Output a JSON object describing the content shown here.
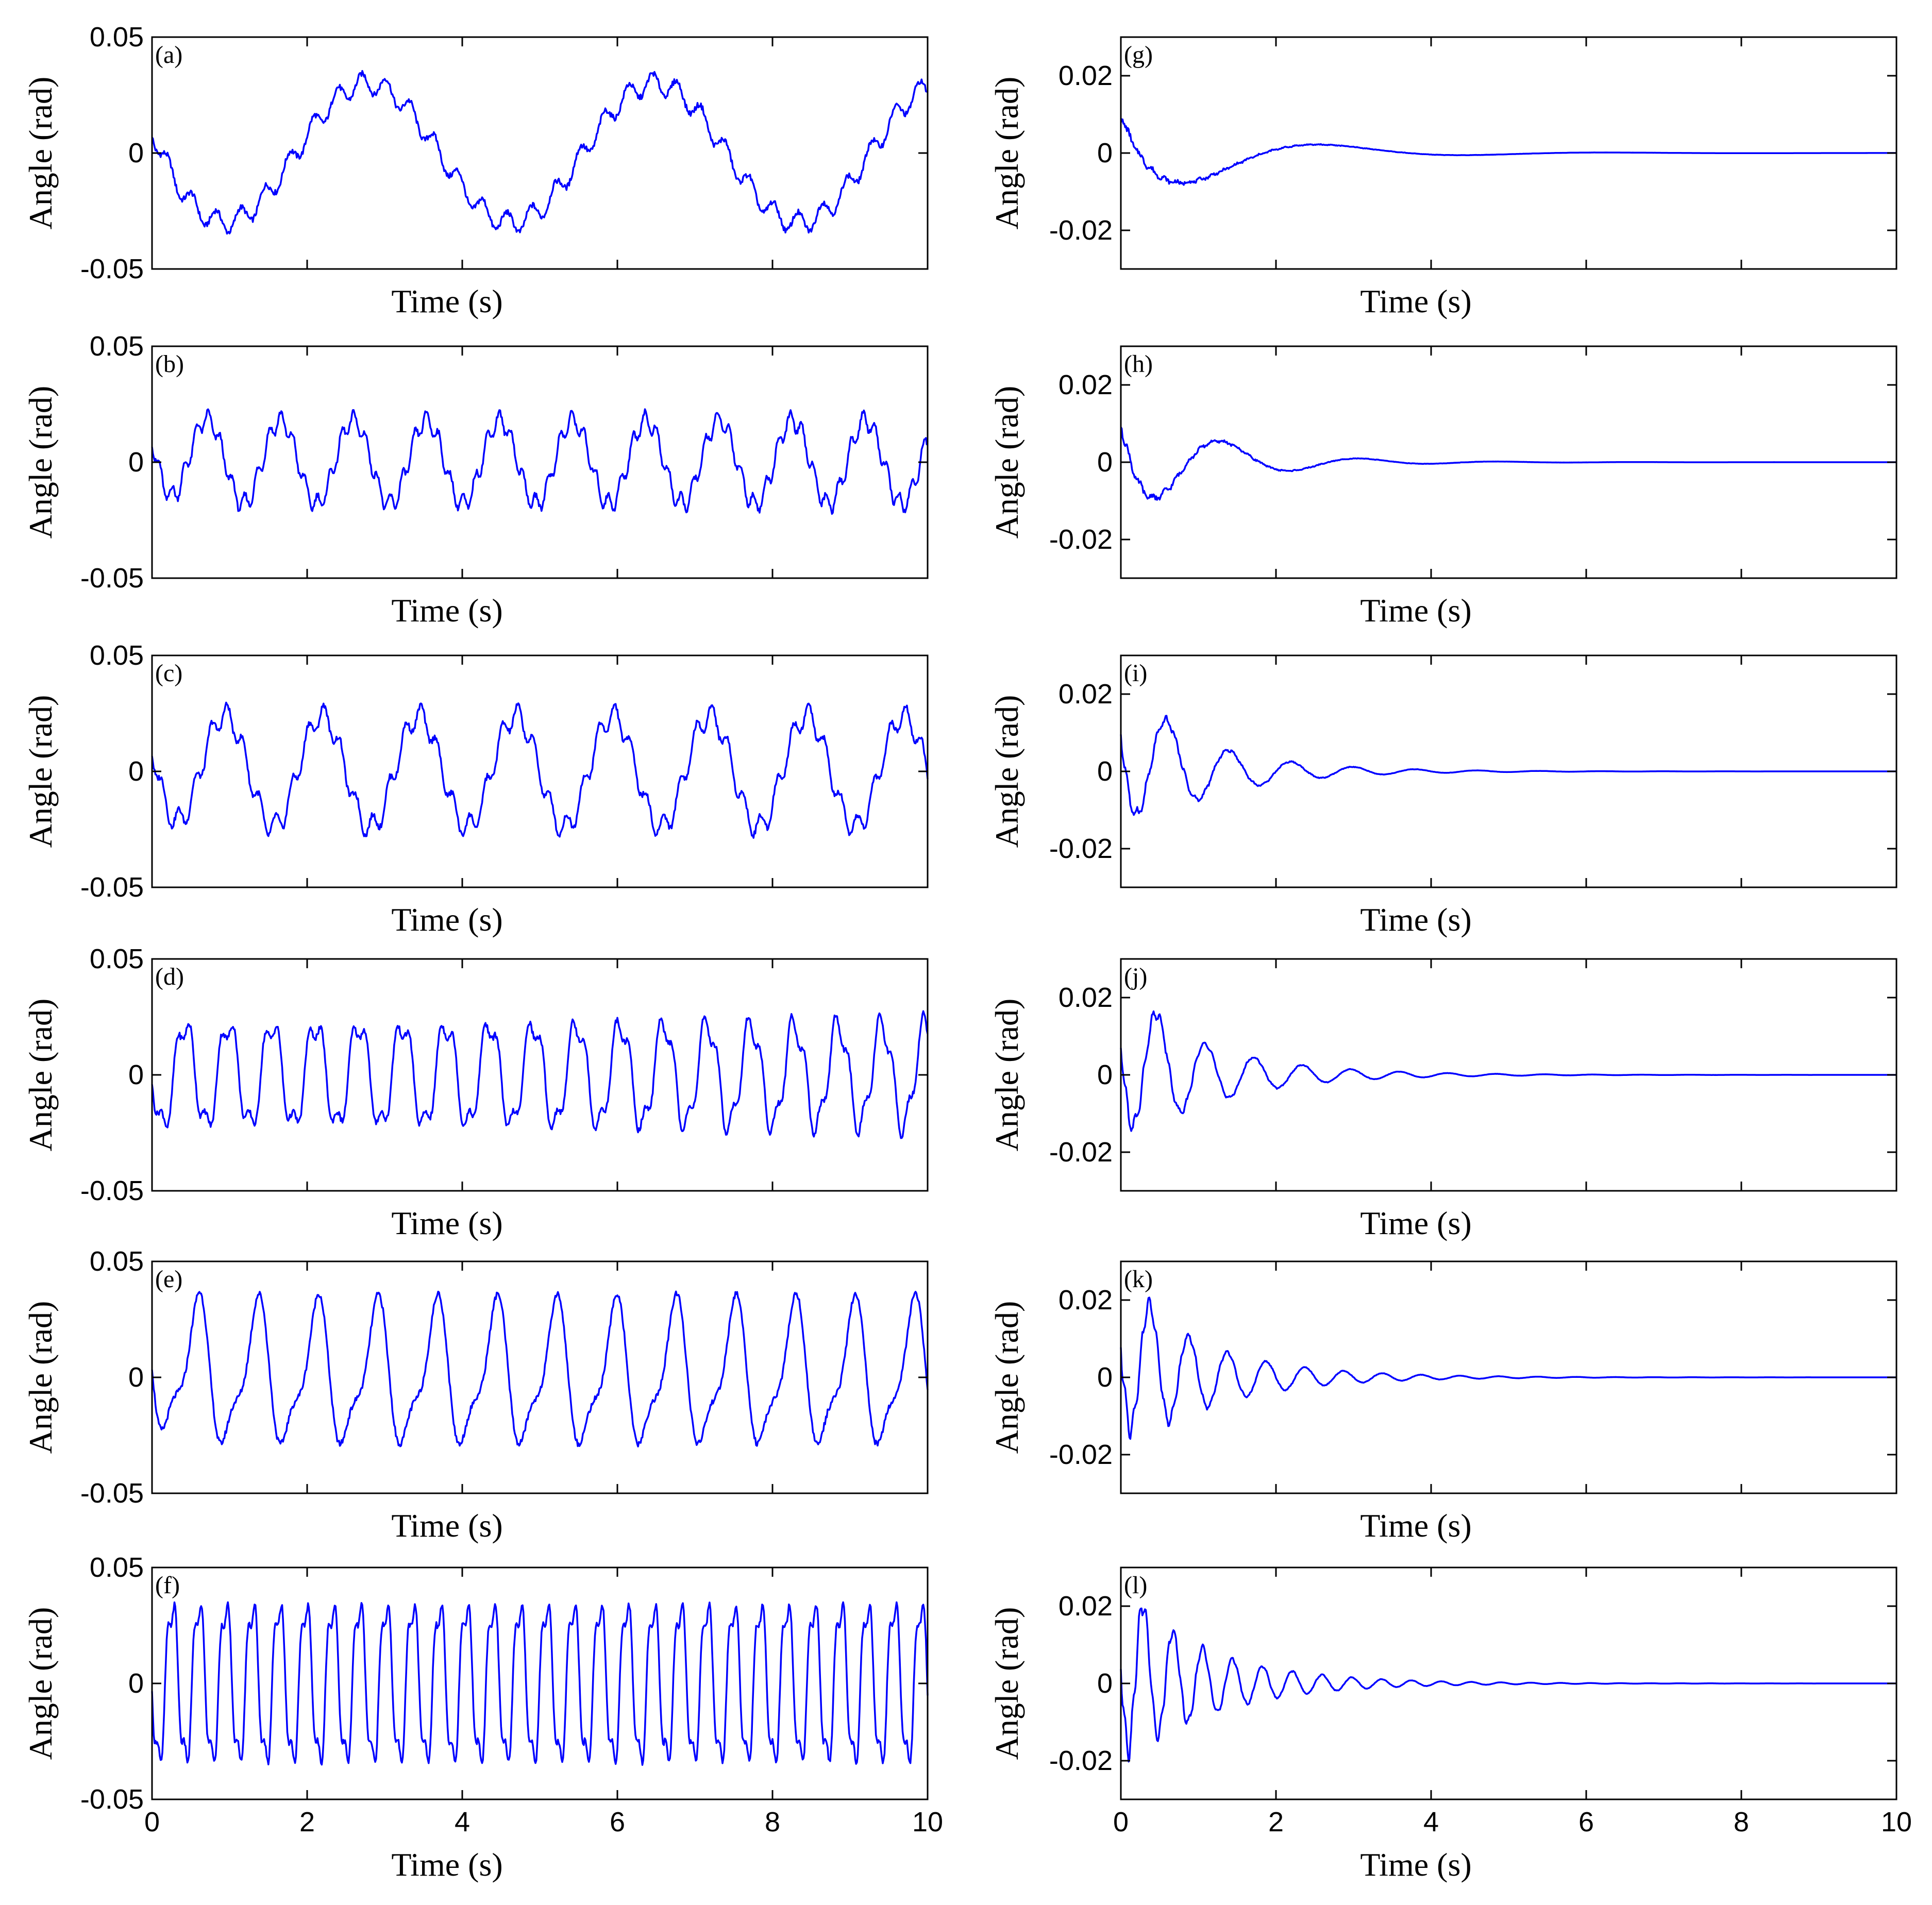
{
  "figure": {
    "line_color": "#0000ff"
  },
  "chart_data": [
    {
      "id": "a",
      "type": "line",
      "panel_label": "(a)",
      "xlabel": "Time (s)",
      "ylabel": "Angle (rad)",
      "xlim": [
        0,
        10
      ],
      "ylim": [
        -0.05,
        0.05
      ],
      "yticks": [
        "0.05",
        "0",
        "-0.05"
      ],
      "xticks": [
        "0",
        "2",
        "4",
        "6",
        "8",
        "10"
      ],
      "show_x_tick_labels": false,
      "grid": false,
      "signal": {
        "kind": "sustained",
        "y0": 0.01,
        "components": [
          {
            "amp": 0.03,
            "freq": 0.27
          },
          {
            "amp": 0.0045,
            "freq": 3.2
          }
        ]
      }
    },
    {
      "id": "b",
      "type": "line",
      "panel_label": "(b)",
      "xlabel": "Time (s)",
      "ylabel": "Angle (rad)",
      "xlim": [
        0,
        10
      ],
      "ylim": [
        -0.05,
        0.05
      ],
      "yticks": [
        "0.05",
        "0",
        "-0.05"
      ],
      "xticks": [
        "0",
        "2",
        "4",
        "6",
        "8",
        "10"
      ],
      "show_x_tick_labels": false,
      "grid": false,
      "signal": {
        "kind": "sustained",
        "y0": 0.01,
        "components": [
          {
            "amp": 0.018,
            "freq": 1.06
          },
          {
            "amp": 0.004,
            "freq": 6.4
          }
        ]
      }
    },
    {
      "id": "c",
      "type": "line",
      "panel_label": "(c)",
      "xlabel": "Time (s)",
      "ylabel": "Angle (rad)",
      "xlim": [
        0,
        10
      ],
      "ylim": [
        -0.05,
        0.05
      ],
      "yticks": [
        "0.05",
        "0",
        "-0.05"
      ],
      "xticks": [
        "0",
        "2",
        "4",
        "6",
        "8",
        "10"
      ],
      "show_x_tick_labels": false,
      "grid": false,
      "signal": {
        "kind": "sustained",
        "y0": 0.01,
        "components": [
          {
            "amp": 0.024,
            "freq": 0.8
          },
          {
            "amp": 0.005,
            "freq": 4.8
          }
        ]
      }
    },
    {
      "id": "d",
      "type": "line",
      "panel_label": "(d)",
      "xlabel": "Time (s)",
      "ylabel": "Angle (rad)",
      "xlim": [
        0,
        10
      ],
      "ylim": [
        -0.05,
        0.05
      ],
      "yticks": [
        "0.05",
        "0",
        "-0.05"
      ],
      "xticks": [
        "0",
        "2",
        "4",
        "6",
        "8",
        "10"
      ],
      "show_x_tick_labels": false,
      "grid": false,
      "signal": {
        "kind": "sustained",
        "y0": 0.0,
        "components": [
          {
            "amp": 0.022,
            "freq": 1.78
          },
          {
            "amp": 0.006,
            "freq": 5.3
          }
        ]
      }
    },
    {
      "id": "e",
      "type": "line",
      "panel_label": "(e)",
      "xlabel": "Time (s)",
      "ylabel": "Angle (rad)",
      "xlim": [
        0,
        10
      ],
      "ylim": [
        -0.05,
        0.05
      ],
      "yticks": [
        "0.05",
        "0",
        "-0.05"
      ],
      "xticks": [
        "0",
        "2",
        "4",
        "6",
        "8",
        "10"
      ],
      "show_x_tick_labels": false,
      "grid": false,
      "signal": {
        "kind": "sustained",
        "y0": 0.01,
        "components": [
          {
            "amp": 0.028,
            "freq": 1.3
          },
          {
            "amp": 0.01,
            "freq": 2.6
          }
        ]
      }
    },
    {
      "id": "f",
      "type": "line",
      "panel_label": "(f)",
      "xlabel": "Time (s)",
      "ylabel": "Angle (rad)",
      "xlim": [
        0,
        10
      ],
      "ylim": [
        -0.05,
        0.05
      ],
      "yticks": [
        "0.05",
        "0",
        "-0.05"
      ],
      "xticks": [
        "0",
        "2",
        "4",
        "6",
        "8",
        "10"
      ],
      "show_x_tick_labels": true,
      "grid": false,
      "signal": {
        "kind": "sustained",
        "y0": 0.0,
        "components": [
          {
            "amp": 0.034,
            "freq": 2.9
          },
          {
            "amp": 0.008,
            "freq": 8.7
          }
        ]
      }
    },
    {
      "id": "g",
      "type": "line",
      "panel_label": "(g)",
      "xlabel": "Time (s)",
      "ylabel": "Angle (rad)",
      "xlim": [
        0,
        10
      ],
      "ylim": [
        -0.03,
        0.03
      ],
      "yticks": [
        "0.02",
        "0",
        "-0.02"
      ],
      "xticks": [
        "0",
        "2",
        "4",
        "6",
        "8",
        "10"
      ],
      "show_x_tick_labels": false,
      "grid": false,
      "signal": {
        "kind": "damped",
        "y0": 0.01,
        "components": [
          {
            "amp": 0.016,
            "freq": 0.27,
            "decay": 0.75
          },
          {
            "amp": 0.0007,
            "freq": 6.5,
            "decay": 0.9
          }
        ]
      }
    },
    {
      "id": "h",
      "type": "line",
      "panel_label": "(h)",
      "xlabel": "Time (s)",
      "ylabel": "Angle (rad)",
      "xlim": [
        0,
        10
      ],
      "ylim": [
        -0.03,
        0.03
      ],
      "yticks": [
        "0.02",
        "0",
        "-0.02"
      ],
      "xticks": [
        "0",
        "2",
        "4",
        "6",
        "8",
        "10"
      ],
      "show_x_tick_labels": false,
      "grid": false,
      "signal": {
        "kind": "damped",
        "y0": 0.01,
        "components": [
          {
            "amp": 0.018,
            "freq": 0.56,
            "decay": 0.95
          },
          {
            "amp": 0.0012,
            "freq": 6.5,
            "decay": 1.2
          }
        ]
      }
    },
    {
      "id": "i",
      "type": "line",
      "panel_label": "(i)",
      "xlabel": "Time (s)",
      "ylabel": "Angle (rad)",
      "xlim": [
        0,
        10
      ],
      "ylim": [
        -0.03,
        0.03
      ],
      "yticks": [
        "0.02",
        "0",
        "-0.02"
      ],
      "xticks": [
        "0",
        "2",
        "4",
        "6",
        "8",
        "10"
      ],
      "show_x_tick_labels": false,
      "grid": false,
      "signal": {
        "kind": "damped",
        "y0": 0.01,
        "components": [
          {
            "amp": 0.02,
            "freq": 1.25,
            "decay": 0.95
          },
          {
            "amp": 0.002,
            "freq": 8,
            "decay": 1.4
          }
        ]
      }
    },
    {
      "id": "j",
      "type": "line",
      "panel_label": "(j)",
      "xlabel": "Time (s)",
      "ylabel": "Angle (rad)",
      "xlim": [
        0,
        10
      ],
      "ylim": [
        -0.03,
        0.03
      ],
      "yticks": [
        "0.02",
        "0",
        "-0.02"
      ],
      "xticks": [
        "0",
        "2",
        "4",
        "6",
        "8",
        "10"
      ],
      "show_x_tick_labels": false,
      "grid": false,
      "signal": {
        "kind": "damped",
        "y0": 0.008,
        "components": [
          {
            "amp": 0.021,
            "freq": 1.6,
            "decay": 0.9
          },
          {
            "amp": 0.0025,
            "freq": 9,
            "decay": 1.5
          }
        ]
      }
    },
    {
      "id": "k",
      "type": "line",
      "panel_label": "(k)",
      "xlabel": "Time (s)",
      "ylabel": "Angle (rad)",
      "xlim": [
        0,
        10
      ],
      "ylim": [
        -0.03,
        0.03
      ],
      "yticks": [
        "0.02",
        "0",
        "-0.02"
      ],
      "xticks": [
        "0",
        "2",
        "4",
        "6",
        "8",
        "10"
      ],
      "show_x_tick_labels": false,
      "grid": false,
      "signal": {
        "kind": "damped",
        "y0": 0.009,
        "components": [
          {
            "amp": 0.022,
            "freq": 2.0,
            "decay": 0.9
          },
          {
            "amp": 0.003,
            "freq": 10,
            "decay": 1.6
          }
        ]
      }
    },
    {
      "id": "l",
      "type": "line",
      "panel_label": "(l)",
      "xlabel": "Time (s)",
      "ylabel": "Angle (rad)",
      "xlim": [
        0,
        10
      ],
      "ylim": [
        -0.03,
        0.03
      ],
      "yticks": [
        "0.02",
        "0",
        "-0.02"
      ],
      "xticks": [
        "0",
        "2",
        "4",
        "6",
        "8",
        "10"
      ],
      "show_x_tick_labels": true,
      "grid": false,
      "signal": {
        "kind": "damped",
        "y0": 0.006,
        "components": [
          {
            "amp": 0.023,
            "freq": 2.6,
            "decay": 0.9
          },
          {
            "amp": 0.004,
            "freq": 11,
            "decay": 1.6
          }
        ]
      }
    }
  ]
}
